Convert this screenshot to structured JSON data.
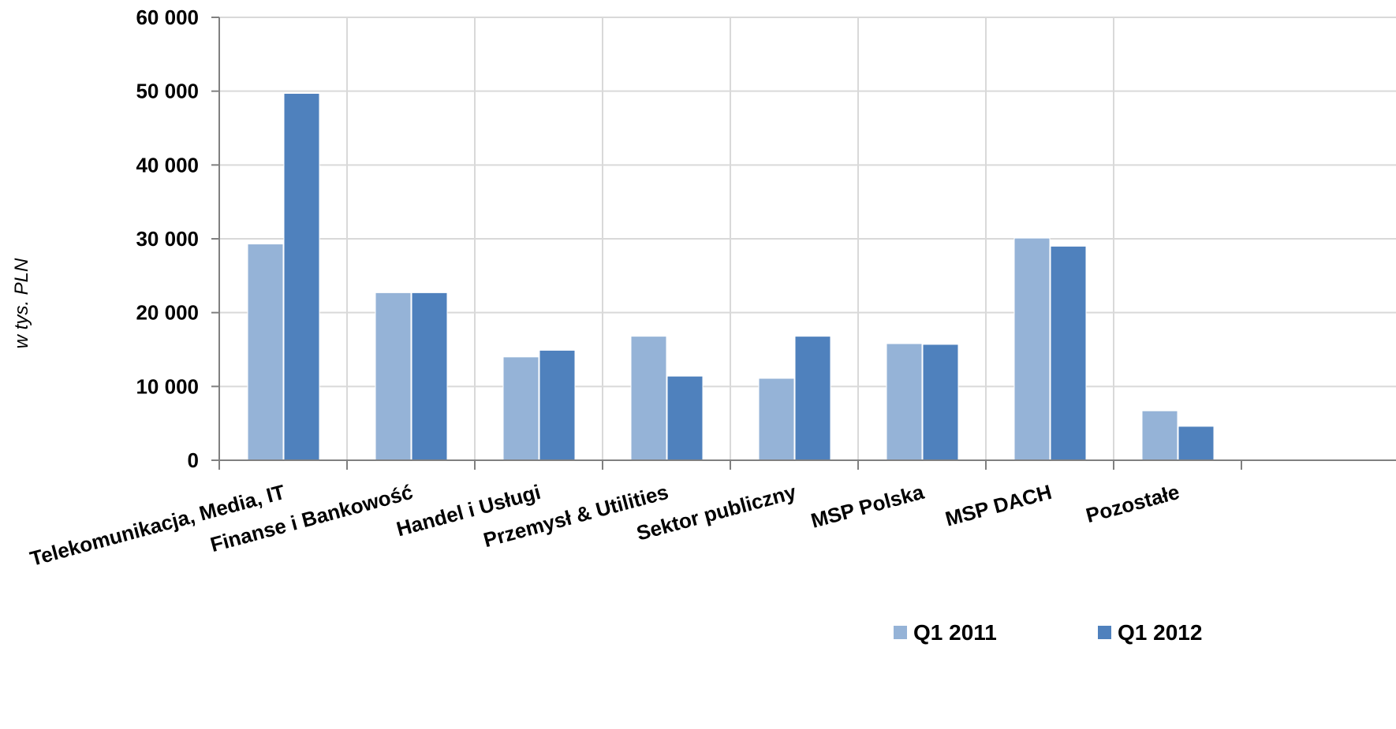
{
  "chart_data": {
    "type": "bar",
    "title": "",
    "xlabel": "",
    "ylabel": "w tys. PLN",
    "ylim": [
      0,
      60000
    ],
    "yticks": [
      0,
      10000,
      20000,
      30000,
      40000,
      50000,
      60000
    ],
    "ytick_labels": [
      "0",
      "10 000",
      "20 000",
      "30 000",
      "40 000",
      "50 000",
      "60 000"
    ],
    "grid": true,
    "legend_position": "bottom-right",
    "categories": [
      "Telekomunikacja, Media, IT",
      "Finanse i Bankowość",
      "Handel i Usługi",
      "Przemysł & Utilities",
      "Sektor publiczny",
      "MSP Polska",
      "MSP DACH",
      "Pozostałe"
    ],
    "series": [
      {
        "name": "Q1 2011",
        "color": "#95B3D7",
        "values": [
          29300,
          22700,
          14000,
          16800,
          11100,
          15800,
          30100,
          6700
        ]
      },
      {
        "name": "Q1 2012",
        "color": "#4F81BD",
        "values": [
          49700,
          22700,
          14900,
          11400,
          16800,
          15700,
          29000,
          4600
        ]
      }
    ]
  }
}
